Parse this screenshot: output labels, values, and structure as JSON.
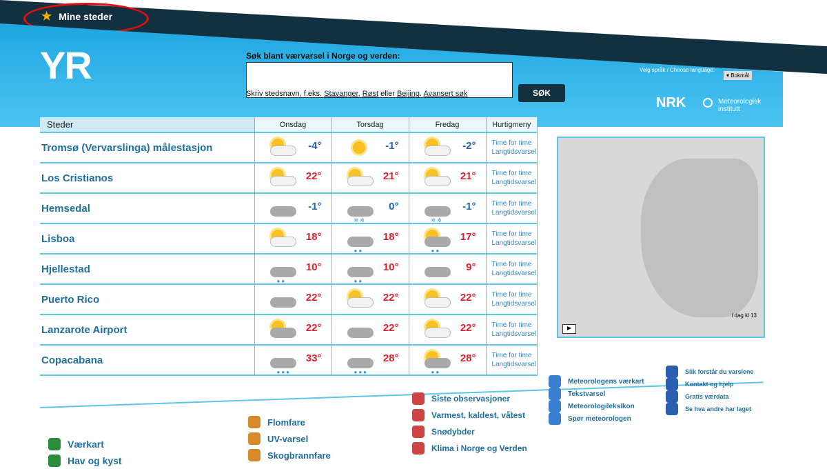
{
  "topbar": {
    "my_places": "Mine steder"
  },
  "header": {
    "logo": "YR",
    "search_label": "Søk blant værvarsel i Norge og verden:",
    "search_value": "",
    "search_button": "SØK",
    "hint_prefix": "Skriv stedsnavn, f.eks.",
    "hint_links": [
      "Stavanger",
      "Røst",
      "Beijing"
    ],
    "hint_or": "eller",
    "advanced": "Avansert søk",
    "language_label": "Velg språk / Choose language:",
    "language": "Bokmål",
    "nrk": "NRK",
    "met": [
      "Meteorologisk",
      "institutt"
    ]
  },
  "table": {
    "headers": [
      "Steder",
      "Onsdag",
      "Torsdag",
      "Fredag",
      "Hurtigmeny"
    ],
    "quick": [
      "Time for time",
      "Langtidsvarsel"
    ],
    "rows": [
      {
        "place": "Tromsø (Vervarslinga) målestasjon",
        "days": [
          {
            "icon": "partly-cloudy",
            "temp": "-4°"
          },
          {
            "icon": "sun",
            "temp": "-1°"
          },
          {
            "icon": "partly-cloudy",
            "temp": "-2°"
          }
        ]
      },
      {
        "place": "Los Cristianos",
        "days": [
          {
            "icon": "partly-cloudy",
            "temp": "22°"
          },
          {
            "icon": "partly-cloudy",
            "temp": "21°"
          },
          {
            "icon": "fair",
            "temp": "21°"
          }
        ]
      },
      {
        "place": "Hemsedal",
        "days": [
          {
            "icon": "cloudy",
            "temp": "-1°"
          },
          {
            "icon": "snow",
            "temp": "0°"
          },
          {
            "icon": "snow",
            "temp": "-1°"
          }
        ]
      },
      {
        "place": "Lisboa",
        "days": [
          {
            "icon": "partly-cloudy",
            "temp": "18°"
          },
          {
            "icon": "rain",
            "temp": "18°"
          },
          {
            "icon": "sun-rain",
            "temp": "17°"
          }
        ]
      },
      {
        "place": "Hjellestad",
        "days": [
          {
            "icon": "rain",
            "temp": "10°"
          },
          {
            "icon": "rain",
            "temp": "10°"
          },
          {
            "icon": "cloudy",
            "temp": "9°"
          }
        ]
      },
      {
        "place": "Puerto Rico",
        "days": [
          {
            "icon": "cloudy",
            "temp": "22°"
          },
          {
            "icon": "partly-cloudy",
            "temp": "22°"
          },
          {
            "icon": "fair",
            "temp": "22°"
          }
        ]
      },
      {
        "place": "Lanzarote Airport",
        "days": [
          {
            "icon": "sun-cloud",
            "temp": "22°"
          },
          {
            "icon": "cloudy",
            "temp": "22°"
          },
          {
            "icon": "partly-cloudy",
            "temp": "22°"
          }
        ]
      },
      {
        "place": "Copacabana",
        "days": [
          {
            "icon": "heavy-rain",
            "temp": "33°"
          },
          {
            "icon": "heavy-rain",
            "temp": "28°"
          },
          {
            "icon": "sun-rain",
            "temp": "28°"
          }
        ]
      }
    ]
  },
  "map": {
    "caption": "i dag kl 13"
  },
  "colors": {
    "cold": "#1f5fc0",
    "warm": "#e0202a",
    "accent": "#1ea6e0"
  },
  "links": {
    "col1": [
      "Værkart",
      "Hav og kyst"
    ],
    "col2": [
      "Flomfare",
      "UV-varsel",
      "Skogbrannfare"
    ],
    "col3": [
      "Siste observasjoner",
      "Varmest, kaldest, våtest",
      "Snødybder",
      "Klima i Norge og Verden"
    ],
    "col4": [
      "Meteorologens værkart",
      "Tekstvarsel",
      "Meteorologileksikon",
      "Spør meteorologen"
    ],
    "col5": [
      "Slik forstår du varslene",
      "Kontakt og hjelp",
      "Gratis værdata",
      "Se hva andre har laget"
    ]
  }
}
